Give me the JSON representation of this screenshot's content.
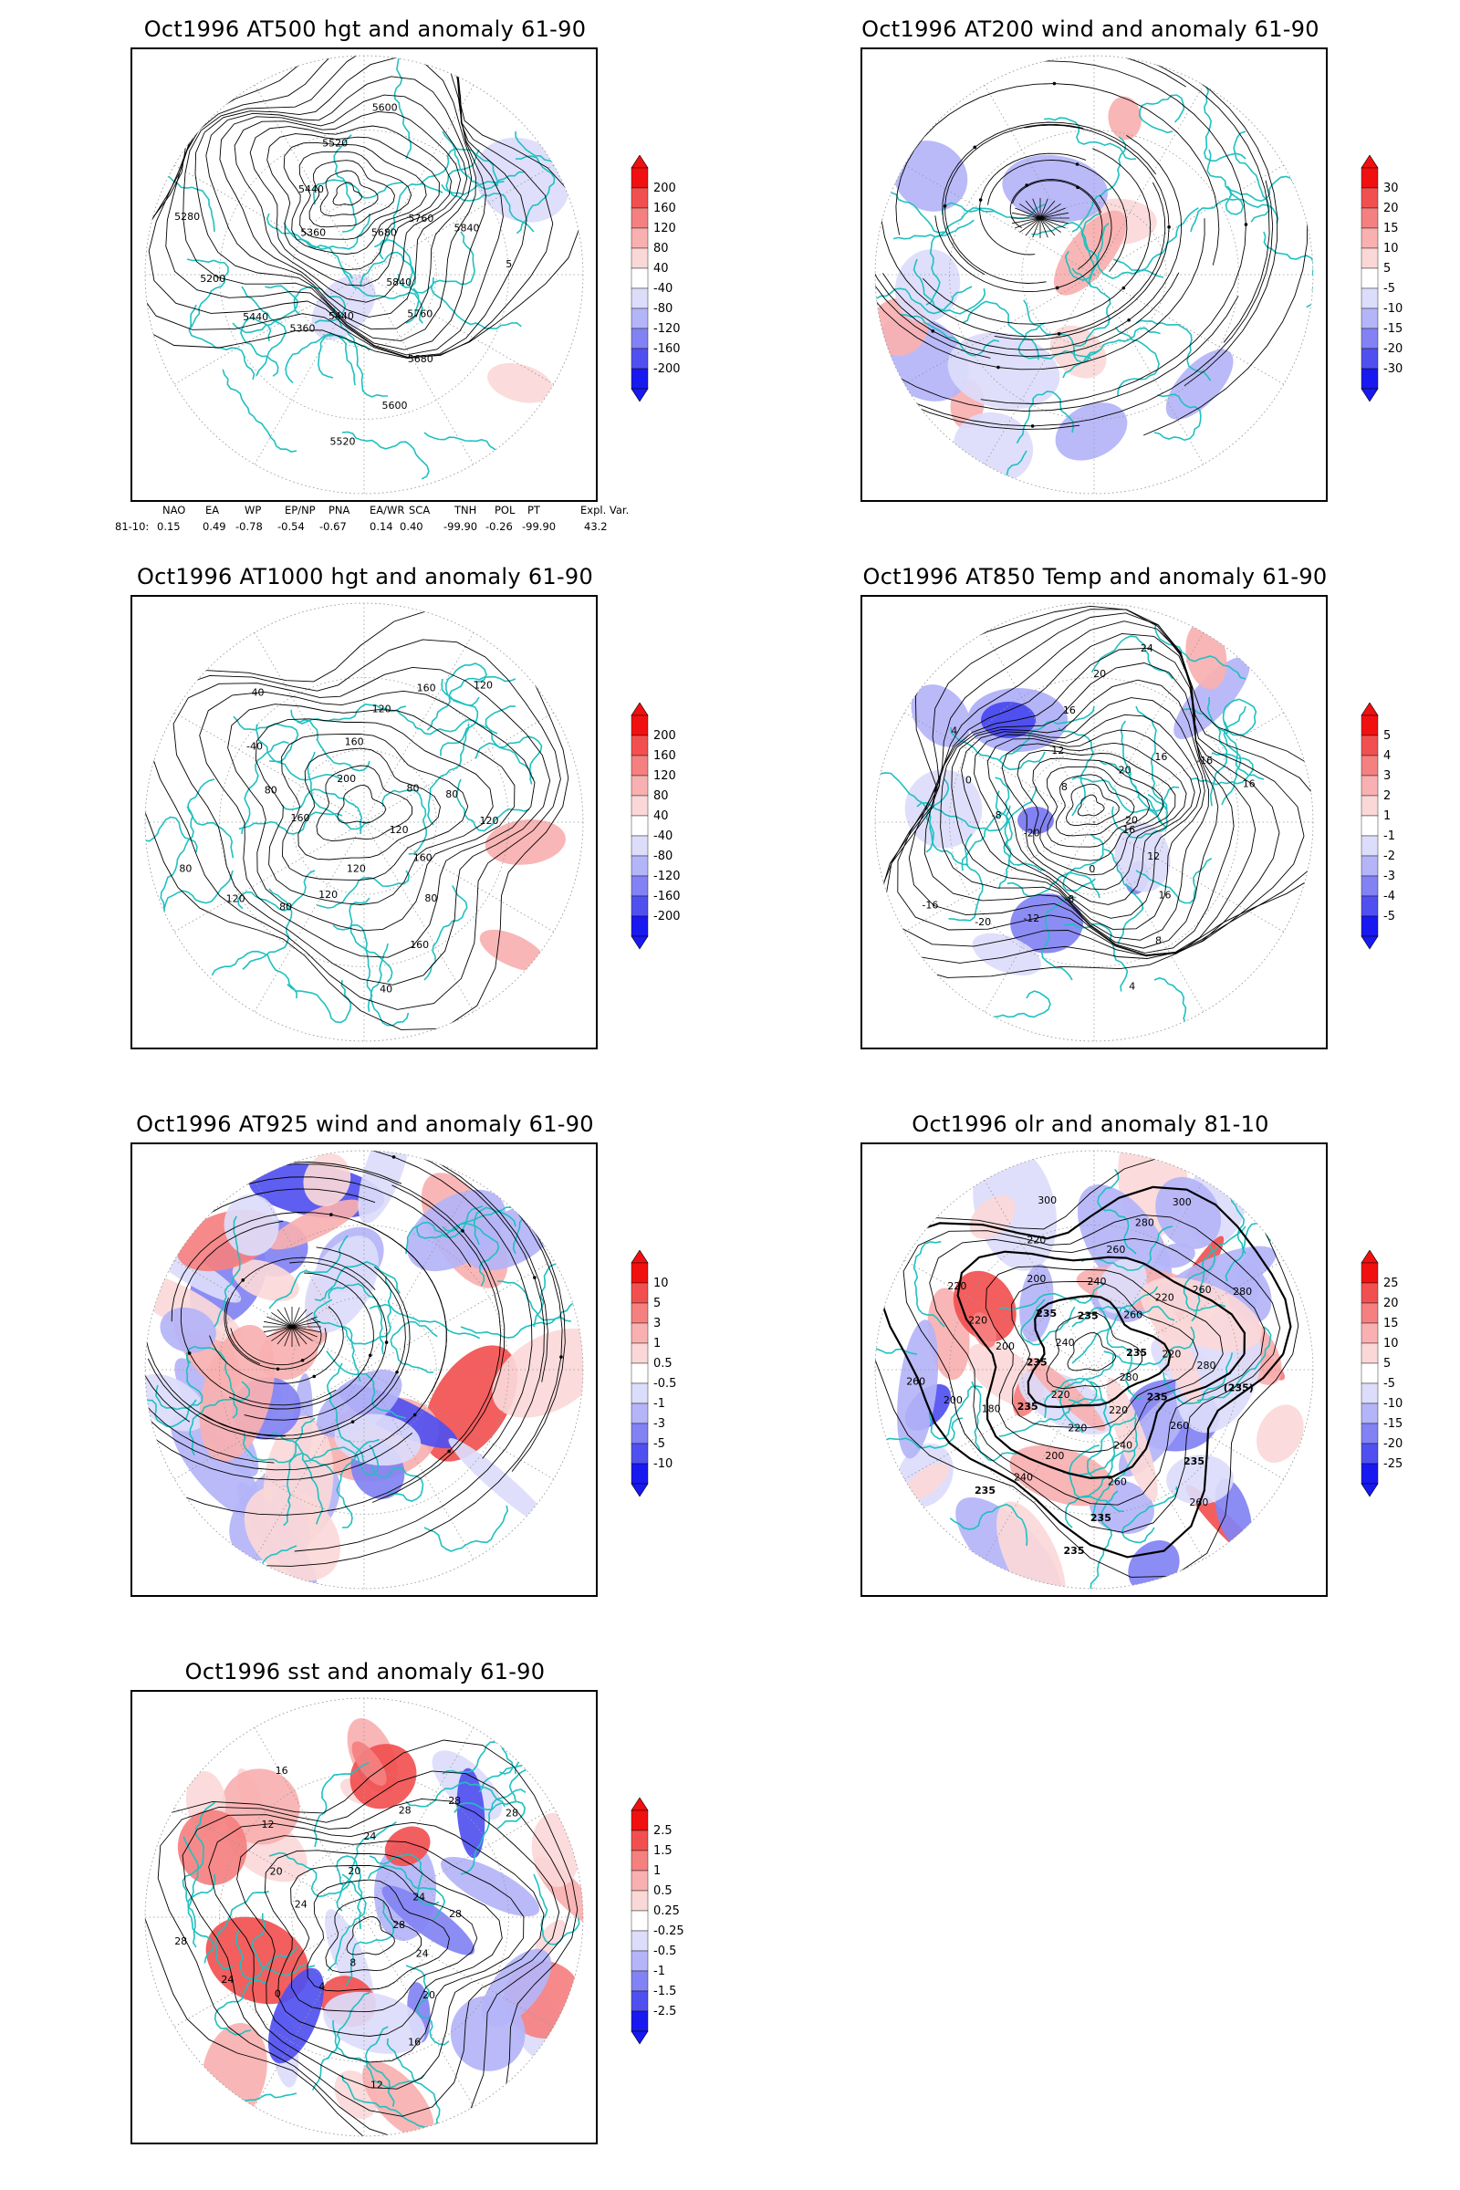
{
  "panels": [
    {
      "id": "p1",
      "title": "Oct1996 AT500 hgt and anomaly 61-90",
      "colorbar": [
        "200",
        "160",
        "120",
        "80",
        "40",
        "-40",
        "-80",
        "-120",
        "-160",
        "-200"
      ],
      "contour_labels": [
        "5840",
        "5760",
        "5680",
        "5600",
        "5520",
        "5440",
        "5360",
        "5440",
        "5200",
        "5280",
        "5360",
        "5440",
        "5520",
        "5600",
        "5680",
        "5760",
        "5840",
        "5"
      ]
    },
    {
      "id": "p2",
      "title": "Oct1996 AT200 wind and anomaly 61-90",
      "colorbar": [
        "30",
        "20",
        "15",
        "10",
        "5",
        "-5",
        "-10",
        "-15",
        "-20",
        "-30"
      ],
      "contour_labels": []
    },
    {
      "id": "p3",
      "title": "Oct1996 AT1000 hgt and anomaly 61-90",
      "colorbar": [
        "200",
        "160",
        "120",
        "80",
        "40",
        "-40",
        "-80",
        "-120",
        "-160",
        "-200"
      ],
      "contour_labels": [
        "120",
        "160",
        "80",
        "160",
        "40",
        "120",
        "120",
        "80",
        "120",
        "80",
        "160",
        "80",
        "-40",
        "40",
        "200",
        "160",
        "120",
        "160",
        "120",
        "80",
        "80",
        "120"
      ]
    },
    {
      "id": "p4",
      "title": "Oct1996 AT850 Temp and anomaly 61-90",
      "colorbar": [
        "5",
        "4",
        "3",
        "2",
        "1",
        "-1",
        "-2",
        "-3",
        "-4",
        "-5"
      ],
      "contour_labels": [
        "16",
        "12",
        "16",
        "8",
        "4",
        "0",
        "-8",
        "-12",
        "-20",
        "-16",
        "-20",
        "-8",
        "0",
        "4",
        "8",
        "12",
        "16",
        "20",
        "24",
        "20",
        "16",
        "-16",
        "16",
        "20"
      ]
    },
    {
      "id": "p5",
      "title": "Oct1996 AT925 wind and anomaly 61-90",
      "colorbar": [
        "10",
        "5",
        "3",
        "1",
        "0.5",
        "-0.5",
        "-1",
        "-3",
        "-5",
        "-10"
      ],
      "contour_labels": []
    },
    {
      "id": "p6",
      "title": "Oct1996 olr and anomaly 81-10",
      "colorbar": [
        "25",
        "20",
        "15",
        "10",
        "5",
        "-5",
        "-10",
        "-15",
        "-20",
        "-25"
      ],
      "contour_labels": [
        "280",
        "235",
        "260",
        "235",
        "260",
        "220",
        "240",
        "260",
        "235",
        "235",
        "220",
        "200",
        "240",
        "235",
        "220",
        "235",
        "180",
        "200",
        "260",
        "235",
        "200",
        "220",
        "220",
        "240",
        "235",
        "200",
        "220",
        "300",
        "235",
        "240",
        "260",
        "280",
        "300",
        "260",
        "220",
        "260",
        "280",
        "235",
        "220",
        "280",
        "(235)"
      ]
    },
    {
      "id": "p7",
      "title": "Oct1996 sst and anomaly 61-90",
      "colorbar": [
        "2.5",
        "1.5",
        "1",
        "0.5",
        "0.25",
        "-0.25",
        "-0.5",
        "-1",
        "-1.5",
        "-2.5"
      ],
      "contour_labels": [
        "28",
        "24",
        "20",
        "16",
        "12",
        "8",
        "4",
        "0",
        "24",
        "28",
        "24",
        "20",
        "12",
        "16",
        "20",
        "24",
        "28",
        "28",
        "28",
        "24",
        "28"
      ]
    }
  ],
  "teleconnection": {
    "headers": [
      "NAO",
      "EA",
      "WP",
      "EP/NP",
      "PNA",
      "EA/WR",
      "SCA",
      "TNH",
      "POL",
      "PT",
      "Expl. Var."
    ],
    "row_label": "81-10:",
    "values": [
      "0.15",
      "0.49",
      "-0.78",
      "-0.54",
      "-0.67",
      "0.14",
      "0.40",
      "-99.90",
      "-0.26",
      "-99.90",
      "43.2"
    ]
  },
  "colors": {
    "red_ramp": [
      "#f01010",
      "#f25050",
      "#f58080",
      "#f8b0b0",
      "#fbd8d8"
    ],
    "blue_ramp": [
      "#dcdcfb",
      "#b4b4f8",
      "#8282f4",
      "#5050f0",
      "#1818f0"
    ],
    "coastline": "#20c0c0",
    "contour": "#000000",
    "grid": "#999999"
  }
}
